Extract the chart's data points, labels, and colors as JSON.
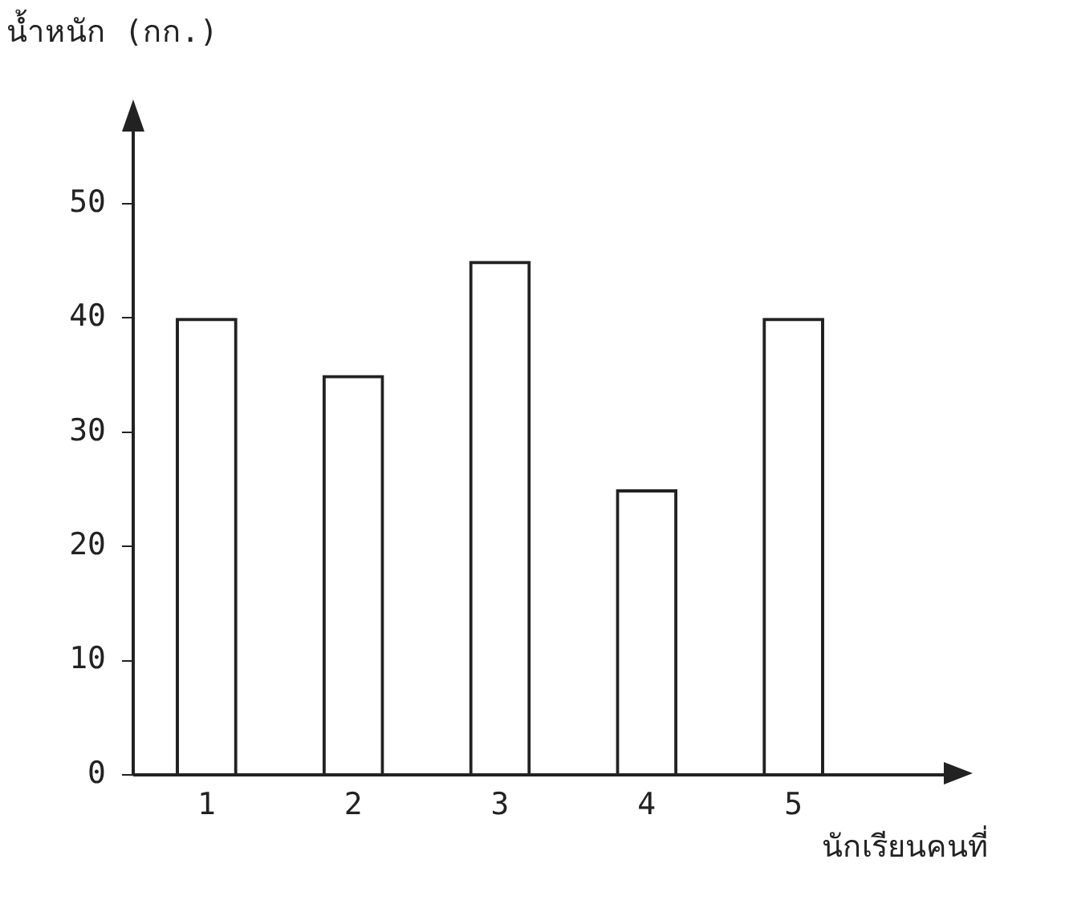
{
  "chart_data": {
    "type": "bar",
    "xlabel": "นักเรียนคนที่",
    "ylabel": "น้ำหนัก (กก.)",
    "categories": [
      "1",
      "2",
      "3",
      "4",
      "5"
    ],
    "values": [
      40,
      35,
      45,
      25,
      40
    ],
    "color": "#222222",
    "ylim": [
      0,
      58
    ],
    "yticks": [
      0,
      10,
      20,
      30,
      40,
      50
    ],
    "grid": false
  }
}
